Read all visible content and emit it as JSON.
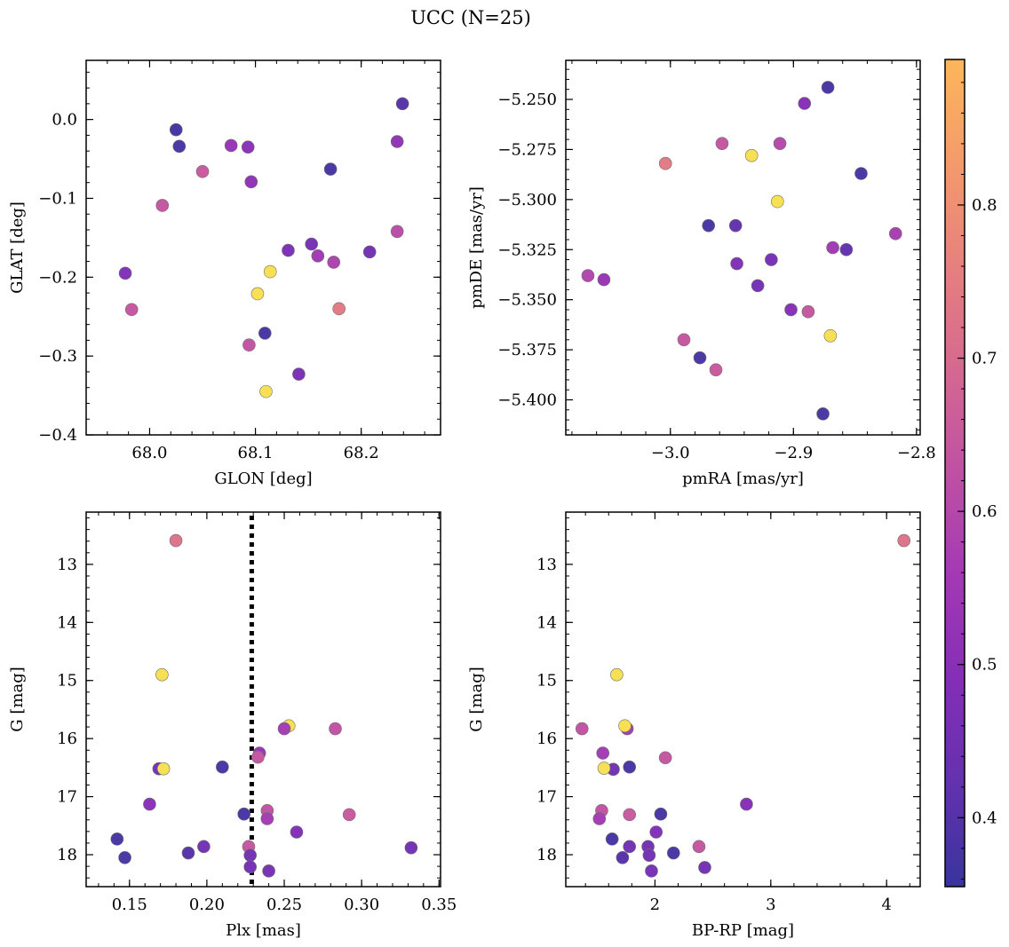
{
  "figure": {
    "title": "UCC (N=25)"
  },
  "colors": {
    "colormap": "plasma",
    "marker_edge": "#707070",
    "membership_line": "#000000"
  },
  "colorbar": {
    "min": 0.355,
    "max": 0.895,
    "ticks": [
      0.4,
      0.5,
      0.6,
      0.7,
      0.8
    ]
  },
  "chart_data": [
    {
      "type": "scatter",
      "xlabel": "GLON [deg]",
      "ylabel": "GLAT [deg]",
      "xlim": [
        67.94,
        68.275
      ],
      "ylim": [
        -0.4,
        0.075
      ],
      "xticks": [
        68.0,
        68.1,
        68.2
      ],
      "yticks": [
        -0.4,
        -0.3,
        -0.2,
        -0.1,
        0.0
      ],
      "yinvert": false,
      "grid": false,
      "points": [
        {
          "x": 68.025,
          "y": -0.013,
          "c": 0.37
        },
        {
          "x": 68.028,
          "y": -0.034,
          "c": 0.38
        },
        {
          "x": 68.077,
          "y": -0.033,
          "c": 0.53
        },
        {
          "x": 68.093,
          "y": -0.035,
          "c": 0.5
        },
        {
          "x": 68.05,
          "y": -0.066,
          "c": 0.65
        },
        {
          "x": 68.096,
          "y": -0.079,
          "c": 0.51
        },
        {
          "x": 68.012,
          "y": -0.109,
          "c": 0.64
        },
        {
          "x": 68.171,
          "y": -0.063,
          "c": 0.38
        },
        {
          "x": 68.239,
          "y": 0.02,
          "c": 0.4
        },
        {
          "x": 68.234,
          "y": -0.028,
          "c": 0.52
        },
        {
          "x": 68.234,
          "y": -0.142,
          "c": 0.61
        },
        {
          "x": 68.208,
          "y": -0.168,
          "c": 0.45
        },
        {
          "x": 68.153,
          "y": -0.158,
          "c": 0.46
        },
        {
          "x": 68.131,
          "y": -0.166,
          "c": 0.47
        },
        {
          "x": 68.159,
          "y": -0.173,
          "c": 0.55
        },
        {
          "x": 68.174,
          "y": -0.181,
          "c": 0.58
        },
        {
          "x": 68.114,
          "y": -0.193,
          "c": 0.88
        },
        {
          "x": 68.102,
          "y": -0.221,
          "c": 0.88
        },
        {
          "x": 68.179,
          "y": -0.24,
          "c": 0.74
        },
        {
          "x": 67.977,
          "y": -0.195,
          "c": 0.48
        },
        {
          "x": 67.983,
          "y": -0.241,
          "c": 0.64
        },
        {
          "x": 68.109,
          "y": -0.271,
          "c": 0.38
        },
        {
          "x": 68.094,
          "y": -0.286,
          "c": 0.63
        },
        {
          "x": 68.141,
          "y": -0.323,
          "c": 0.47
        },
        {
          "x": 68.11,
          "y": -0.345,
          "c": 0.88
        }
      ]
    },
    {
      "type": "scatter",
      "xlabel": "pmRA [mas/yr]",
      "ylabel": "pmDE [mas/yr]",
      "xlim": [
        -3.085,
        -2.797
      ],
      "ylim": [
        -5.4175,
        -5.2305
      ],
      "xticks": [
        -3.0,
        -2.9,
        -2.8
      ],
      "yticks": [
        -5.4,
        -5.375,
        -5.35,
        -5.325,
        -5.3,
        -5.275,
        -5.25
      ],
      "yinvert": false,
      "grid": false,
      "points": [
        {
          "x": -2.872,
          "y": -5.244,
          "c": 0.38
        },
        {
          "x": -2.891,
          "y": -5.252,
          "c": 0.49
        },
        {
          "x": -2.958,
          "y": -5.272,
          "c": 0.64
        },
        {
          "x": -2.911,
          "y": -5.272,
          "c": 0.6
        },
        {
          "x": -3.004,
          "y": -5.282,
          "c": 0.74
        },
        {
          "x": -2.934,
          "y": -5.278,
          "c": 0.88
        },
        {
          "x": -2.845,
          "y": -5.287,
          "c": 0.38
        },
        {
          "x": -2.913,
          "y": -5.301,
          "c": 0.88
        },
        {
          "x": -2.969,
          "y": -5.313,
          "c": 0.38
        },
        {
          "x": -2.947,
          "y": -5.313,
          "c": 0.42
        },
        {
          "x": -2.817,
          "y": -5.317,
          "c": 0.57
        },
        {
          "x": -2.868,
          "y": -5.324,
          "c": 0.55
        },
        {
          "x": -2.857,
          "y": -5.325,
          "c": 0.42
        },
        {
          "x": -2.918,
          "y": -5.33,
          "c": 0.46
        },
        {
          "x": -2.946,
          "y": -5.332,
          "c": 0.48
        },
        {
          "x": -3.067,
          "y": -5.338,
          "c": 0.59
        },
        {
          "x": -3.054,
          "y": -5.34,
          "c": 0.53
        },
        {
          "x": -2.929,
          "y": -5.343,
          "c": 0.45
        },
        {
          "x": -2.902,
          "y": -5.355,
          "c": 0.49
        },
        {
          "x": -2.888,
          "y": -5.356,
          "c": 0.64
        },
        {
          "x": -2.87,
          "y": -5.368,
          "c": 0.88
        },
        {
          "x": -2.989,
          "y": -5.37,
          "c": 0.64
        },
        {
          "x": -2.976,
          "y": -5.379,
          "c": 0.38
        },
        {
          "x": -2.963,
          "y": -5.385,
          "c": 0.65
        },
        {
          "x": -2.876,
          "y": -5.407,
          "c": 0.38
        }
      ]
    },
    {
      "type": "scatter",
      "xlabel": "Plx [mas]",
      "ylabel": "G [mag]",
      "xlim": [
        0.122,
        0.351
      ],
      "ylim": [
        18.55,
        12.1
      ],
      "xticks": [
        0.15,
        0.2,
        0.25,
        0.3,
        0.35
      ],
      "yticks": [
        13,
        14,
        15,
        16,
        17,
        18
      ],
      "yinvert": true,
      "grid": false,
      "vline": 0.229,
      "points": [
        {
          "x": 0.18,
          "y": 12.59,
          "c": 0.72
        },
        {
          "x": 0.171,
          "y": 14.9,
          "c": 0.88
        },
        {
          "x": 0.253,
          "y": 15.78,
          "c": 0.88
        },
        {
          "x": 0.25,
          "y": 15.83,
          "c": 0.56
        },
        {
          "x": 0.283,
          "y": 15.83,
          "c": 0.63
        },
        {
          "x": 0.234,
          "y": 16.25,
          "c": 0.53
        },
        {
          "x": 0.233,
          "y": 16.32,
          "c": 0.64
        },
        {
          "x": 0.169,
          "y": 16.52,
          "c": 0.45
        },
        {
          "x": 0.172,
          "y": 16.52,
          "c": 0.88
        },
        {
          "x": 0.21,
          "y": 16.49,
          "c": 0.38
        },
        {
          "x": 0.163,
          "y": 17.13,
          "c": 0.5
        },
        {
          "x": 0.224,
          "y": 17.3,
          "c": 0.38
        },
        {
          "x": 0.239,
          "y": 17.24,
          "c": 0.63
        },
        {
          "x": 0.239,
          "y": 17.38,
          "c": 0.56
        },
        {
          "x": 0.292,
          "y": 17.31,
          "c": 0.65
        },
        {
          "x": 0.258,
          "y": 17.61,
          "c": 0.48
        },
        {
          "x": 0.142,
          "y": 17.73,
          "c": 0.38
        },
        {
          "x": 0.198,
          "y": 17.86,
          "c": 0.45
        },
        {
          "x": 0.227,
          "y": 17.86,
          "c": 0.64
        },
        {
          "x": 0.332,
          "y": 17.88,
          "c": 0.45
        },
        {
          "x": 0.188,
          "y": 17.97,
          "c": 0.4
        },
        {
          "x": 0.147,
          "y": 18.05,
          "c": 0.38
        },
        {
          "x": 0.228,
          "y": 18.01,
          "c": 0.45
        },
        {
          "x": 0.228,
          "y": 18.21,
          "c": 0.45
        },
        {
          "x": 0.24,
          "y": 18.28,
          "c": 0.46
        }
      ]
    },
    {
      "type": "scatter",
      "xlabel": "BP-RP [mag]",
      "ylabel": "G [mag]",
      "xlim": [
        1.23,
        4.29
      ],
      "ylim": [
        18.55,
        12.1
      ],
      "xticks": [
        2,
        3,
        4
      ],
      "yticks": [
        13,
        14,
        15,
        16,
        17,
        18
      ],
      "yinvert": true,
      "grid": false,
      "points": [
        {
          "x": 4.15,
          "y": 12.59,
          "c": 0.72
        },
        {
          "x": 1.67,
          "y": 14.9,
          "c": 0.88
        },
        {
          "x": 1.37,
          "y": 15.83,
          "c": 0.63
        },
        {
          "x": 1.76,
          "y": 15.83,
          "c": 0.56
        },
        {
          "x": 1.74,
          "y": 15.78,
          "c": 0.88
        },
        {
          "x": 1.55,
          "y": 16.25,
          "c": 0.56
        },
        {
          "x": 2.09,
          "y": 16.33,
          "c": 0.64
        },
        {
          "x": 1.64,
          "y": 16.53,
          "c": 0.45
        },
        {
          "x": 1.56,
          "y": 16.51,
          "c": 0.88
        },
        {
          "x": 1.78,
          "y": 16.49,
          "c": 0.38
        },
        {
          "x": 2.79,
          "y": 17.13,
          "c": 0.49
        },
        {
          "x": 1.54,
          "y": 17.24,
          "c": 0.63
        },
        {
          "x": 1.52,
          "y": 17.38,
          "c": 0.56
        },
        {
          "x": 1.78,
          "y": 17.31,
          "c": 0.65
        },
        {
          "x": 2.05,
          "y": 17.3,
          "c": 0.38
        },
        {
          "x": 2.01,
          "y": 17.61,
          "c": 0.48
        },
        {
          "x": 1.63,
          "y": 17.73,
          "c": 0.38
        },
        {
          "x": 1.78,
          "y": 17.86,
          "c": 0.45
        },
        {
          "x": 1.94,
          "y": 17.86,
          "c": 0.45
        },
        {
          "x": 2.38,
          "y": 17.86,
          "c": 0.64
        },
        {
          "x": 2.16,
          "y": 17.97,
          "c": 0.38
        },
        {
          "x": 1.95,
          "y": 18.01,
          "c": 0.45
        },
        {
          "x": 1.72,
          "y": 18.05,
          "c": 0.4
        },
        {
          "x": 2.43,
          "y": 18.22,
          "c": 0.45
        },
        {
          "x": 1.97,
          "y": 18.28,
          "c": 0.46
        }
      ]
    }
  ]
}
